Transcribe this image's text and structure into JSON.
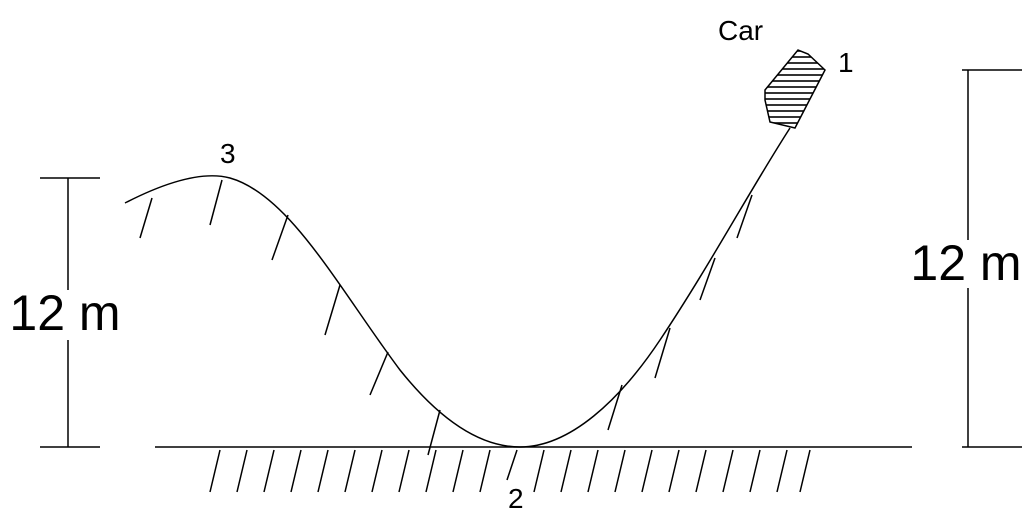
{
  "labels": {
    "car": "Car",
    "point_1": "1",
    "point_2": "2",
    "point_3": "3"
  },
  "dimensions": [
    {
      "label": "12 m"
    },
    {
      "label": "12 m"
    }
  ]
}
